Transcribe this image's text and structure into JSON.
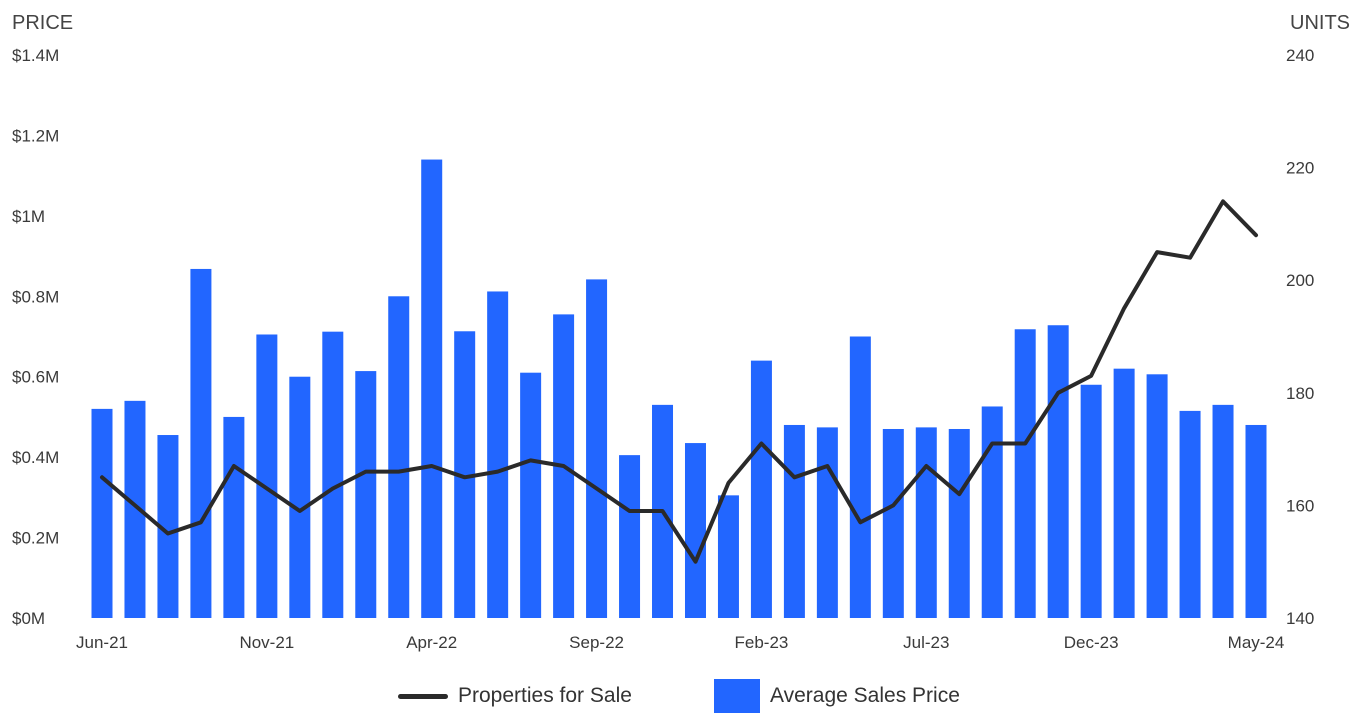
{
  "chart_data": {
    "type": "bar",
    "left_axis_title": "PRICE",
    "right_axis_title": "UNITS",
    "x": [
      "Jun-21",
      "Jul-21",
      "Aug-21",
      "Sep-21",
      "Oct-21",
      "Nov-21",
      "Dec-21",
      "Jan-22",
      "Feb-22",
      "Mar-22",
      "Apr-22",
      "May-22",
      "Jun-22",
      "Jul-22",
      "Aug-22",
      "Sep-22",
      "Oct-22",
      "Nov-22",
      "Dec-22",
      "Jan-23",
      "Feb-23",
      "Mar-23",
      "Apr-23",
      "May-23",
      "Jun-23",
      "Jul-23",
      "Aug-23",
      "Sep-23",
      "Oct-23",
      "Nov-23",
      "Dec-23",
      "Jan-24",
      "Feb-24",
      "Mar-24",
      "Apr-24",
      "May-24"
    ],
    "x_tick_labels": [
      "Jun-21",
      "Nov-21",
      "Apr-22",
      "Sep-22",
      "Feb-23",
      "Jul-23",
      "Dec-23",
      "May-24"
    ],
    "left_ticks": [
      "$0M",
      "$0.2M",
      "$0.4M",
      "$0.6M",
      "$0.8M",
      "$1M",
      "$1.2M",
      "$1.4M"
    ],
    "right_ticks": [
      "140",
      "160",
      "180",
      "200",
      "220",
      "240"
    ],
    "ylim_left": [
      0,
      1.4
    ],
    "ylim_right": [
      140,
      240
    ],
    "series": [
      {
        "name": "Average Sales Price",
        "type": "bar",
        "axis": "left",
        "color": "#2266ff",
        "values": [
          0.52,
          0.54,
          0.455,
          0.868,
          0.5,
          0.705,
          0.6,
          0.712,
          0.614,
          0.8,
          1.14,
          0.713,
          0.812,
          0.61,
          0.755,
          0.842,
          0.405,
          0.53,
          0.435,
          0.305,
          0.64,
          0.48,
          0.474,
          0.7,
          0.47,
          0.474,
          0.47,
          0.526,
          0.718,
          0.728,
          0.58,
          0.62,
          0.606,
          0.515,
          0.53,
          0.48
        ]
      },
      {
        "name": "Properties for Sale",
        "type": "line",
        "axis": "right",
        "color": "#2a2a2a",
        "values": [
          165,
          160,
          155,
          157,
          167,
          163,
          159,
          163,
          166,
          166,
          167,
          165,
          166,
          168,
          167,
          163,
          159,
          159,
          150,
          164,
          171,
          165,
          167,
          157,
          160,
          167,
          162,
          171,
          171,
          180,
          183,
          195,
          205,
          204,
          214,
          208
        ]
      }
    ],
    "legend": [
      {
        "label": "Properties for Sale",
        "kind": "line",
        "color": "#2a2a2a"
      },
      {
        "label": "Average Sales Price",
        "kind": "bar",
        "color": "#2266ff"
      }
    ]
  }
}
